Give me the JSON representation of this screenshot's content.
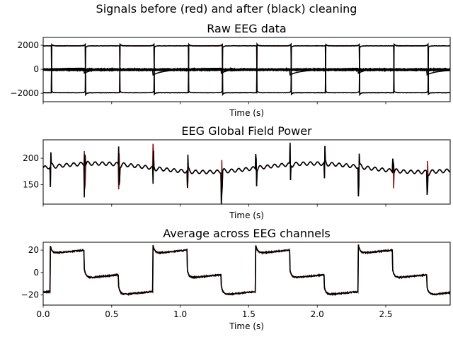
{
  "figure": {
    "suptitle": "Signals before (red) and after (black) cleaning"
  },
  "chart_data": [
    {
      "type": "line",
      "title": "Raw EEG data",
      "xlabel": "Time (s)",
      "ylabel": "",
      "xlim": [
        0,
        2.97
      ],
      "ylim": [
        -2700,
        2650
      ],
      "yticks": [
        -2000,
        0,
        2000
      ],
      "xticks": [
        0,
        0.5,
        1.0,
        1.5,
        2.0,
        2.5
      ],
      "show_xticklabels": false,
      "grid": false,
      "legend": "none",
      "series": [
        {
          "color": "#8b1a1a",
          "generator": "square",
          "params": {
            "amp": 1950,
            "period": 0.5,
            "phase": 0.06,
            "duty": 0.5,
            "ring": 500,
            "noise": 25
          }
        },
        {
          "color": "#000000",
          "generator": "square",
          "params": {
            "amp": 1950,
            "period": 0.5,
            "phase": 0.06,
            "duty": 0.5,
            "ring": 500,
            "noise": 25
          }
        },
        {
          "color": "#000000",
          "generator": "square",
          "params": {
            "amp": -1950,
            "period": 0.5,
            "phase": 0.06,
            "duty": 0.5,
            "ring": 500,
            "noise": 25
          }
        },
        {
          "color": "#000000",
          "generator": "band",
          "params": {
            "offset": -30,
            "width": 60
          }
        },
        {
          "color": "#000000",
          "generator": "drift",
          "params": {
            "amp": 400,
            "period": 0.5,
            "phase": 0.3
          }
        }
      ]
    },
    {
      "type": "line",
      "title": "EEG Global Field Power",
      "xlabel": "Time (s)",
      "ylabel": "",
      "xlim": [
        0,
        2.97
      ],
      "ylim": [
        113,
        235
      ],
      "yticks": [
        150,
        200
      ],
      "xticks": [
        0,
        0.5,
        1.0,
        1.5,
        2.0,
        2.5
      ],
      "show_xticklabels": false,
      "grid": false,
      "legend": "none",
      "series": [
        {
          "color": "#8b1a1a",
          "generator": "gfp",
          "params": {
            "base": 182,
            "period": 0.25,
            "phase": 0.05,
            "spike": 40,
            "dip": 50
          }
        },
        {
          "color": "#000000",
          "generator": "gfp",
          "params": {
            "base": 182,
            "period": 0.25,
            "phase": 0.05,
            "spike": 40,
            "dip": 50
          }
        }
      ]
    },
    {
      "type": "line",
      "title": "Average across EEG channels",
      "xlabel": "Time (s)",
      "ylabel": "",
      "xlim": [
        0,
        2.97
      ],
      "ylim": [
        -29,
        27
      ],
      "yticks": [
        -20,
        0,
        20
      ],
      "xticks": [
        0,
        0.5,
        1.0,
        1.5,
        2.0,
        2.5
      ],
      "xticklabels": [
        "0.0",
        "0.5",
        "1.0",
        "1.5",
        "2.0",
        "2.5"
      ],
      "show_xticklabels": true,
      "grid": false,
      "legend": "none",
      "series": [
        {
          "color": "#8b1a1a",
          "generator": "avg",
          "params": {
            "period": 0.75,
            "phase": 0.05
          }
        },
        {
          "color": "#000000",
          "generator": "avg",
          "params": {
            "period": 0.75,
            "phase": 0.05
          }
        }
      ]
    }
  ]
}
